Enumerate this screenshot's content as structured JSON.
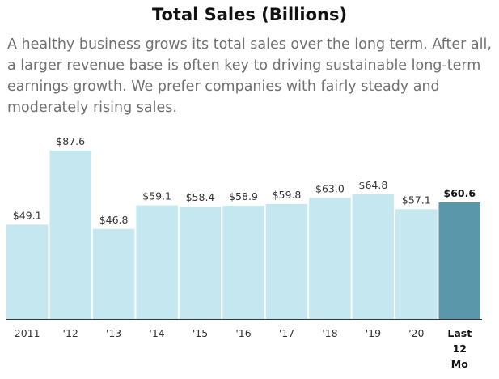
{
  "header": {
    "title": "Total Sales (Billions)",
    "description": "A healthy business grows its total sales over the long term. After all, a larger revenue base is often key to driving sustainable long-term earnings growth. We prefer companies with fairly steady and moderately rising sales."
  },
  "colors": {
    "bar": "#c5e8f0",
    "highlight": "#5b97ab",
    "axis": "#333333"
  },
  "chart_data": {
    "type": "bar",
    "title": "Total Sales (Billions)",
    "categories": [
      "2011",
      "'12",
      "'13",
      "'14",
      "'15",
      "'16",
      "'17",
      "'18",
      "'19",
      "'20",
      "Last 12 Mo"
    ],
    "values": [
      49.1,
      87.6,
      46.8,
      59.1,
      58.4,
      58.9,
      59.8,
      63.0,
      64.8,
      57.1,
      60.6
    ],
    "value_labels": [
      "$49.1",
      "$87.6",
      "$46.8",
      "$59.1",
      "$58.4",
      "$58.9",
      "$59.8",
      "$63.0",
      "$64.8",
      "$57.1",
      "$60.6"
    ],
    "highlight_index": 10,
    "ylim": [
      0,
      100
    ],
    "grid": false,
    "xlabel": "",
    "ylabel": ""
  }
}
